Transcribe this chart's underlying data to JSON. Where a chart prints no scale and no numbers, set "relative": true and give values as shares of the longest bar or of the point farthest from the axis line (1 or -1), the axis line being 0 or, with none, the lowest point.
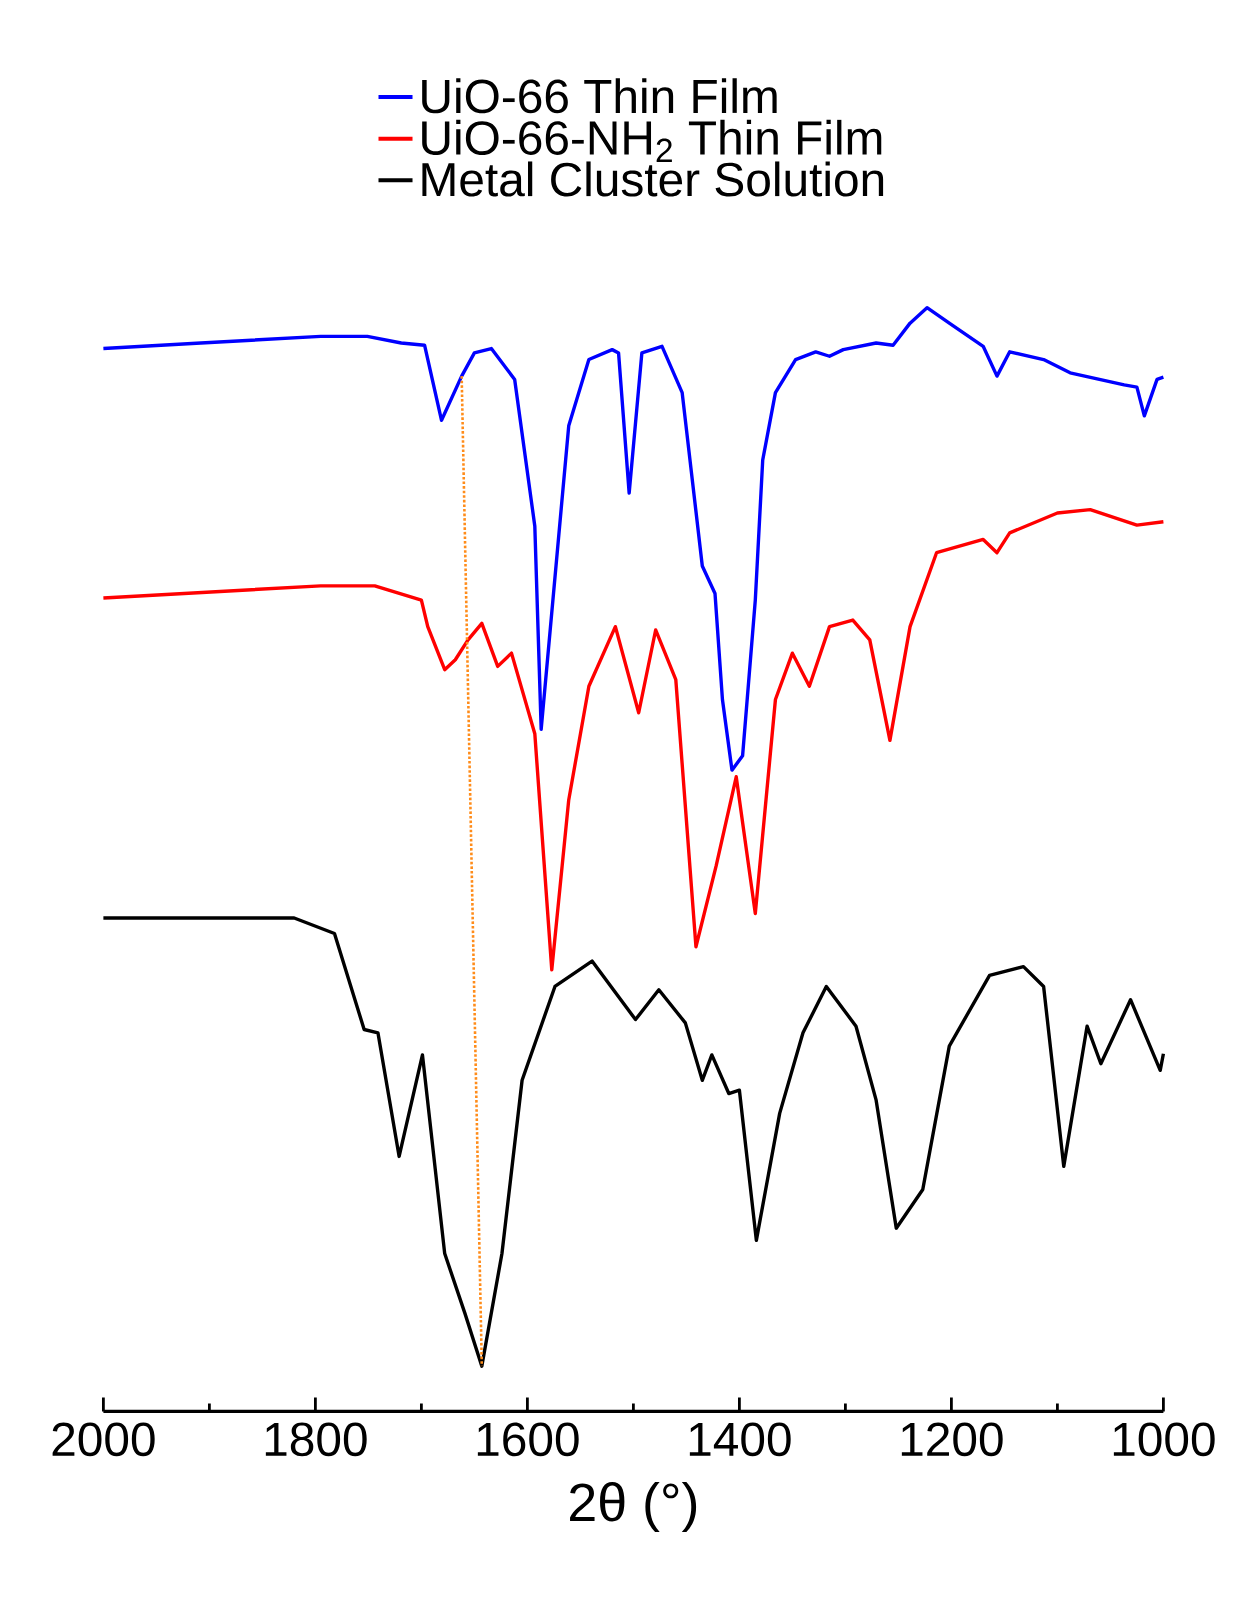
{
  "chart_data": {
    "type": "line",
    "relative": true,
    "xlabel": "2θ (°)",
    "xlim": [
      2000,
      1000
    ],
    "xticks": [
      2000,
      {
        "value": 1900,
        "label": null
      },
      1800,
      {
        "value": 1700,
        "label": null
      },
      1600,
      {
        "value": 1500,
        "label": null
      },
      1400,
      {
        "value": 1300,
        "label": null
      },
      1200,
      {
        "value": 1100,
        "label": null
      },
      1000
    ],
    "legend": "top",
    "line_style": "solid",
    "marker": "none",
    "series": [
      {
        "name": "UiO-66 Thin Film",
        "color": "#0000ff",
        "x": [
          2000,
          1908,
          1795,
          1751,
          1719,
          1697,
          1681,
          1662,
          1650,
          1634,
          1612,
          1593,
          1587,
          1561,
          1542,
          1520,
          1514,
          1504,
          1492,
          1473,
          1454,
          1435,
          1423,
          1416,
          1407,
          1397,
          1385,
          1378,
          1366,
          1347,
          1328,
          1315,
          1302,
          1271,
          1255,
          1239,
          1223,
          1202,
          1170,
          1157,
          1145,
          1113,
          1088,
          1037,
          1025,
          1018,
          1006,
          1000
        ],
        "values": [
          0.963,
          0.968,
          0.974,
          0.974,
          0.968,
          0.966,
          0.898,
          0.938,
          0.959,
          0.963,
          0.935,
          0.802,
          0.618,
          0.893,
          0.953,
          0.962,
          0.959,
          0.832,
          0.959,
          0.965,
          0.923,
          0.766,
          0.741,
          0.645,
          0.581,
          0.594,
          0.735,
          0.862,
          0.923,
          0.953,
          0.96,
          0.956,
          0.962,
          0.968,
          0.966,
          0.986,
          1.0,
          0.986,
          0.965,
          0.938,
          0.96,
          0.953,
          0.941,
          0.93,
          0.928,
          0.902,
          0.935,
          0.937
        ]
      },
      {
        "name": "UiO-66-NH$_{2}$ Thin Film",
        "color": "#ff0000",
        "x": [
          2000,
          1795,
          1744,
          1700,
          1694,
          1678,
          1668,
          1656,
          1643,
          1628,
          1615,
          1593,
          1577,
          1561,
          1542,
          1517,
          1495,
          1479,
          1460,
          1441,
          1422,
          1403,
          1385,
          1366,
          1350,
          1334,
          1315,
          1293,
          1277,
          1258,
          1239,
          1214,
          1170,
          1157,
          1145,
          1100,
          1069,
          1025,
          1000
        ],
        "values": [
          0.737,
          0.748,
          0.748,
          0.735,
          0.711,
          0.672,
          0.681,
          0.699,
          0.714,
          0.675,
          0.687,
          0.614,
          0.4,
          0.554,
          0.657,
          0.711,
          0.633,
          0.708,
          0.663,
          0.421,
          0.494,
          0.575,
          0.451,
          0.645,
          0.687,
          0.657,
          0.711,
          0.717,
          0.699,
          0.608,
          0.711,
          0.778,
          0.79,
          0.778,
          0.796,
          0.814,
          0.817,
          0.803,
          0.806
        ]
      },
      {
        "name": "Metal Cluster Solution",
        "color": "#000000",
        "x": [
          2000,
          1820,
          1782,
          1754,
          1741,
          1721,
          1699,
          1678,
          1659,
          1643,
          1624,
          1605,
          1574,
          1539,
          1498,
          1476,
          1451,
          1435,
          1426,
          1410,
          1400,
          1384,
          1362,
          1340,
          1318,
          1290,
          1271,
          1252,
          1227,
          1202,
          1164,
          1132,
          1113,
          1094,
          1072,
          1059,
          1031,
          1003,
          1000
        ],
        "values": [
          0.447,
          0.447,
          0.433,
          0.346,
          0.343,
          0.231,
          0.323,
          0.143,
          0.089,
          0.041,
          0.143,
          0.3,
          0.385,
          0.408,
          0.355,
          0.382,
          0.352,
          0.3,
          0.323,
          0.288,
          0.291,
          0.155,
          0.27,
          0.343,
          0.385,
          0.349,
          0.282,
          0.166,
          0.201,
          0.331,
          0.395,
          0.403,
          0.385,
          0.222,
          0.349,
          0.315,
          0.373,
          0.309,
          0.324
        ]
      },
      {
        "color": "#ff8c1a",
        "line_style": "dotted",
        "x": [
          1662,
          1643
        ],
        "values": [
          0.938,
          0.041
        ]
      }
    ]
  }
}
